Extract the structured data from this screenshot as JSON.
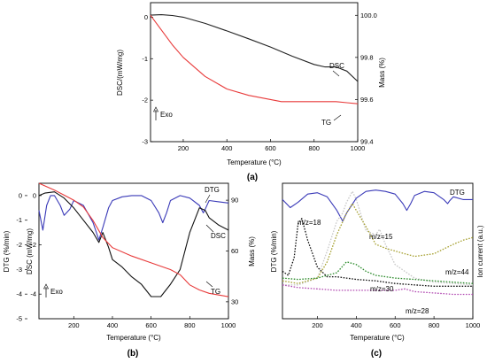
{
  "chart_data": [
    {
      "id": "a",
      "type": "line",
      "caption": "(a)",
      "xlabel": "Temperature (°C)",
      "ylabel_left": "DSC/(mW/mg)",
      "ylabel_right": "Mass (%)",
      "x_ticks": [
        200,
        400,
        600,
        800,
        1000
      ],
      "y_left_ticks": [
        0,
        -1,
        -2,
        -3
      ],
      "y_right_ticks": [
        "100.0",
        "99.8",
        "99.6",
        "99.4"
      ],
      "xlim": [
        50,
        1000
      ],
      "ylim_left": [
        -3,
        0.35
      ],
      "ylim_right": [
        99.4,
        100.06
      ],
      "annotations": {
        "exo": "Exo"
      },
      "series": [
        {
          "name": "DSC",
          "axis": "left",
          "color": "#222222",
          "x": [
            50,
            100,
            150,
            200,
            300,
            400,
            500,
            600,
            700,
            800,
            850,
            900,
            950,
            1000
          ],
          "y": [
            0.05,
            0.06,
            0.04,
            0.0,
            -0.15,
            -0.33,
            -0.52,
            -0.72,
            -0.94,
            -1.14,
            -1.2,
            -1.2,
            -1.3,
            -1.55
          ]
        },
        {
          "name": "TG",
          "axis": "right",
          "color": "#e83a3a",
          "x": [
            50,
            100,
            150,
            200,
            300,
            400,
            500,
            600,
            650,
            700,
            800,
            900,
            950,
            1000
          ],
          "y": [
            100.0,
            99.93,
            99.86,
            99.8,
            99.71,
            99.65,
            99.62,
            99.6,
            99.59,
            99.59,
            99.59,
            99.59,
            99.585,
            99.58
          ]
        }
      ]
    },
    {
      "id": "b",
      "type": "line",
      "caption": "(b)",
      "xlabel": "Temperature (°C)",
      "ylabel_left_outer": "DTG (%/min)",
      "ylabel_left_inner": "DSC (mW/mg)",
      "ylabel_right": "Mass (%)",
      "x_ticks": [
        200,
        400,
        600,
        800,
        1000
      ],
      "y_left_ticks": [
        0,
        -1,
        -2,
        -3,
        -4,
        -5
      ],
      "y_inner_ticks": [
        0,
        -2,
        -4
      ],
      "y_right_ticks": [
        90,
        60,
        30
      ],
      "xlim": [
        20,
        1000
      ],
      "ylim_left": [
        -5,
        0.5
      ],
      "ylim_right": [
        20,
        100
      ],
      "annotations": {
        "exo": "Exo"
      },
      "series": [
        {
          "name": "DTG",
          "axis": "left",
          "color": "#3a3ab8",
          "x": [
            20,
            40,
            60,
            80,
            100,
            130,
            150,
            180,
            200,
            250,
            300,
            330,
            350,
            380,
            400,
            450,
            500,
            550,
            600,
            640,
            660,
            680,
            700,
            750,
            800,
            850,
            870,
            880,
            900,
            950,
            1000
          ],
          "y": [
            -0.6,
            -1.4,
            -0.4,
            0.0,
            0.0,
            -0.4,
            -0.8,
            -0.55,
            -0.2,
            -0.4,
            -1.1,
            -1.8,
            -1.3,
            -0.5,
            -0.2,
            -0.05,
            0.0,
            0.0,
            -0.2,
            -0.7,
            -1.1,
            -0.7,
            -0.2,
            0.0,
            -0.1,
            -0.4,
            -0.7,
            -0.55,
            -0.2,
            -0.25,
            -0.3
          ]
        },
        {
          "name": "DSC",
          "axis": "left",
          "color": "#111111",
          "x": [
            20,
            50,
            100,
            150,
            200,
            250,
            300,
            330,
            350,
            380,
            400,
            450,
            500,
            550,
            600,
            650,
            700,
            750,
            800,
            850,
            880,
            900,
            950,
            1000
          ],
          "y": [
            0.0,
            0.1,
            0.15,
            -0.1,
            -0.5,
            -1.0,
            -1.5,
            -1.9,
            -1.5,
            -2.1,
            -2.6,
            -2.9,
            -3.3,
            -3.6,
            -4.1,
            -4.1,
            -3.6,
            -3.0,
            -1.5,
            -0.5,
            -0.6,
            -0.9,
            -1.2,
            -1.4
          ]
        },
        {
          "name": "TG",
          "axis": "right",
          "color": "#e83a3a",
          "x": [
            20,
            100,
            150,
            200,
            250,
            300,
            350,
            400,
            500,
            600,
            700,
            750,
            800,
            850,
            900,
            950,
            1000
          ],
          "y": [
            100.0,
            96.0,
            93.0,
            90.0,
            86.0,
            78.0,
            68.0,
            62.0,
            57.0,
            53.0,
            49.0,
            46.0,
            40.0,
            37.0,
            35.0,
            34.0,
            33.0
          ]
        }
      ]
    },
    {
      "id": "c",
      "type": "line",
      "caption": "(c)",
      "xlabel": "Temperature (°C)",
      "ylabel_left": "DTG (%/min)",
      "ylabel_right": "Ion current (a.u.)",
      "x_ticks": [
        200,
        400,
        600,
        800,
        1000
      ],
      "xlim": [
        20,
        1000
      ],
      "ylim": [
        0,
        100
      ],
      "series": [
        {
          "name": "DTG",
          "color": "#3a3ab8",
          "dash": "",
          "x": [
            20,
            60,
            100,
            150,
            200,
            250,
            300,
            330,
            350,
            400,
            450,
            500,
            550,
            600,
            640,
            660,
            680,
            700,
            750,
            800,
            850,
            870,
            880,
            900,
            950,
            1000
          ],
          "y": [
            88,
            82,
            86,
            92,
            93,
            90,
            80,
            72,
            78,
            89,
            94,
            95,
            94,
            92,
            85,
            80,
            85,
            91,
            94,
            93,
            88,
            85,
            87,
            90,
            88,
            88
          ]
        },
        {
          "name": "m/z=18",
          "color": "#111111",
          "dash": "1.6 1.6",
          "x": [
            20,
            50,
            80,
            100,
            120,
            150,
            200,
            250,
            300,
            350,
            400,
            500,
            600,
            700,
            800,
            900,
            1000
          ],
          "y": [
            35,
            32,
            45,
            70,
            74,
            58,
            38,
            31,
            31,
            30,
            29,
            28,
            26,
            25,
            24,
            24,
            24
          ]
        },
        {
          "name": "m/z=15",
          "color": "#c8c8c8",
          "dash": "1.6 1.6",
          "x": [
            20,
            100,
            200,
            250,
            300,
            330,
            350,
            380,
            400,
            450,
            500,
            520,
            550,
            600,
            700,
            800,
            900,
            1000
          ],
          "y": [
            25,
            25,
            30,
            50,
            72,
            78,
            86,
            94,
            88,
            65,
            62,
            66,
            55,
            40,
            30,
            27,
            26,
            25
          ]
        },
        {
          "name": "m/z=44",
          "color": "#a6a030",
          "dash": "1.6 1.6",
          "x": [
            20,
            100,
            200,
            250,
            300,
            350,
            380,
            400,
            450,
            500,
            550,
            600,
            650,
            700,
            800,
            900,
            950,
            1000
          ],
          "y": [
            28,
            26,
            30,
            42,
            62,
            78,
            85,
            80,
            68,
            55,
            52,
            50,
            48,
            46,
            48,
            55,
            58,
            60
          ]
        },
        {
          "name": "m/z=30",
          "color": "#2a8a2a",
          "dash": "1.6 1.6",
          "x": [
            20,
            100,
            200,
            300,
            350,
            400,
            450,
            500,
            600,
            700,
            800,
            900,
            1000
          ],
          "y": [
            30,
            29,
            30,
            34,
            42,
            40,
            35,
            32,
            30,
            29,
            28,
            27,
            26
          ]
        },
        {
          "name": "m/z=28",
          "color": "#b24ab2",
          "dash": "1.6 1.6",
          "x": [
            20,
            100,
            200,
            300,
            400,
            500,
            600,
            650,
            700,
            800,
            900,
            1000
          ],
          "y": [
            25,
            23,
            22,
            21,
            21,
            21,
            21,
            22,
            20,
            19,
            18,
            18
          ]
        }
      ]
    }
  ]
}
